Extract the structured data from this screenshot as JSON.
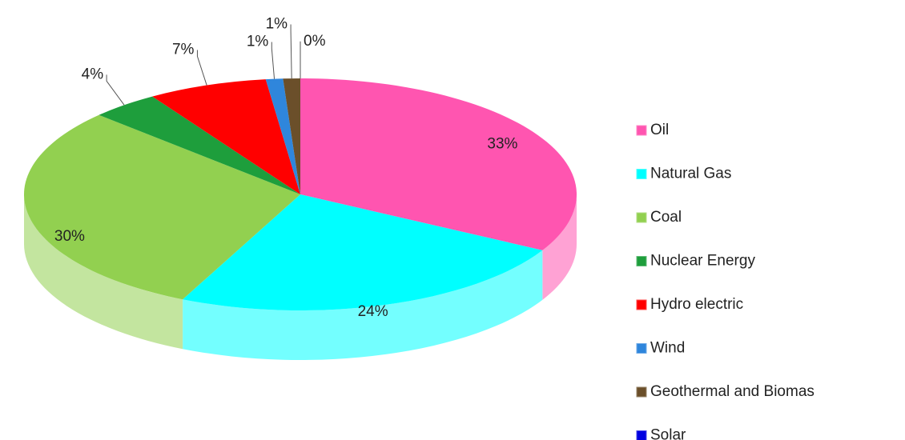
{
  "chart_data": {
    "type": "pie3d",
    "categories": [
      "Oil",
      "Natural Gas",
      "Coal",
      "Nuclear Energy",
      "Hydro electric",
      "Wind",
      "Geothermal and Biomas",
      "Solar"
    ],
    "values": [
      33,
      24,
      30,
      4,
      7,
      1,
      1,
      0
    ],
    "value_labels": [
      "33%",
      "24%",
      "30%",
      "4%",
      "7%",
      "1%",
      "1%",
      "0%"
    ],
    "colors": [
      "#ff55b0",
      "#00ffff",
      "#92d050",
      "#1e9e3c",
      "#ff0000",
      "#2f86dc",
      "#6b4f2a",
      "#0000e0"
    ],
    "legend": "right"
  }
}
